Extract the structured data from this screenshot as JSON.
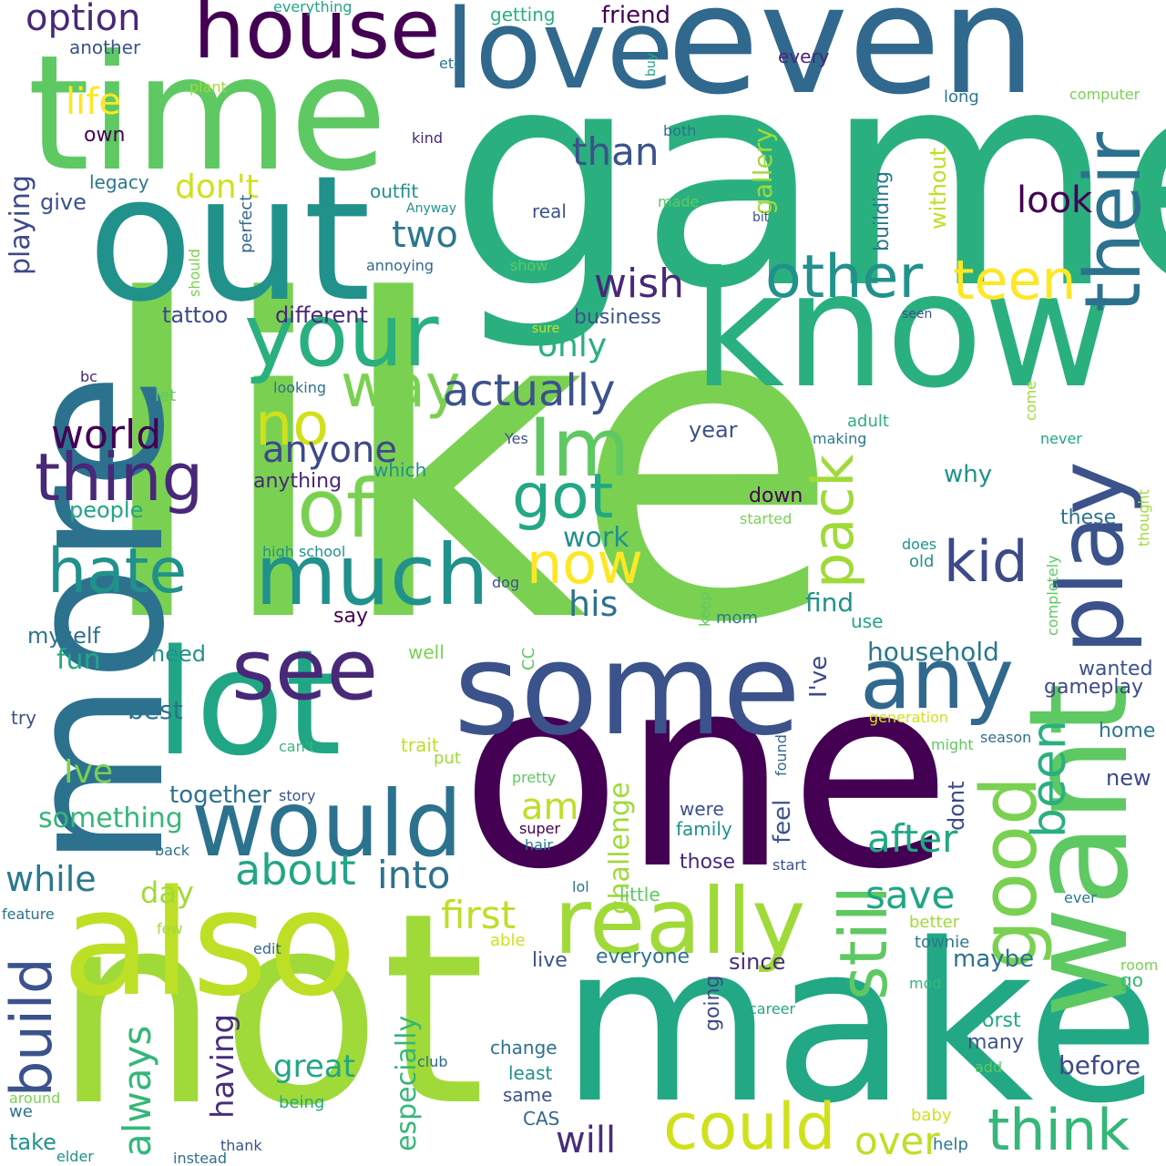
{
  "words": [
    {
      "text": "like",
      "color": "#7ad151"
    },
    {
      "text": "game",
      "color": "#2ab07f"
    },
    {
      "text": "one",
      "color": "#440154"
    },
    {
      "text": "more",
      "color": "#2c728e"
    },
    {
      "text": "not",
      "color": "#a0da39"
    },
    {
      "text": "make",
      "color": "#22a884"
    },
    {
      "text": "time",
      "color": "#5ec962"
    },
    {
      "text": "out",
      "color": "#21918c"
    },
    {
      "text": "even",
      "color": "#31688e"
    },
    {
      "text": "know",
      "color": "#2ab07f"
    },
    {
      "text": "also",
      "color": "#bddf26"
    },
    {
      "text": "some",
      "color": "#3b528b"
    },
    {
      "text": "lot",
      "color": "#21a685"
    },
    {
      "text": "want",
      "color": "#5ec962"
    },
    {
      "text": "love",
      "color": "#31688e"
    },
    {
      "text": "house",
      "color": "#440154"
    },
    {
      "text": "really",
      "color": "#a0da39"
    },
    {
      "text": "would",
      "color": "#2c728e"
    },
    {
      "text": "your",
      "color": "#2ab07f"
    },
    {
      "text": "much",
      "color": "#21918c"
    },
    {
      "text": "see",
      "color": "#482878"
    },
    {
      "text": "play",
      "color": "#3b528b"
    },
    {
      "text": "off",
      "color": "#7ad151"
    },
    {
      "text": "could",
      "color": "#d0e11c"
    },
    {
      "text": "think",
      "color": "#35b779"
    },
    {
      "text": "any",
      "color": "#31688e"
    },
    {
      "text": "good",
      "color": "#7ad151"
    },
    {
      "text": "thing",
      "color": "#482878"
    },
    {
      "text": "their",
      "color": "#2c728e"
    },
    {
      "text": "other",
      "color": "#21918c"
    },
    {
      "text": "Im",
      "color": "#5ec962"
    },
    {
      "text": "hate",
      "color": "#21918c"
    },
    {
      "text": "still",
      "color": "#5ec962"
    },
    {
      "text": "got",
      "color": "#22a884"
    },
    {
      "text": "way",
      "color": "#7ad151"
    },
    {
      "text": "build",
      "color": "#3b528b"
    },
    {
      "text": "pack",
      "color": "#a0da39"
    },
    {
      "text": "teen",
      "color": "#fde725"
    },
    {
      "text": "no",
      "color": "#d0e11c"
    },
    {
      "text": "now",
      "color": "#fde725"
    },
    {
      "text": "kid",
      "color": "#3e4989"
    },
    {
      "text": "actually",
      "color": "#3b528b"
    },
    {
      "text": "about",
      "color": "#21a685"
    },
    {
      "text": "world",
      "color": "#440154"
    },
    {
      "text": "been",
      "color": "#2ab07f"
    },
    {
      "text": "over",
      "color": "#bddf26"
    },
    {
      "text": "into",
      "color": "#2c728e"
    },
    {
      "text": "always",
      "color": "#35b779"
    },
    {
      "text": "anyone",
      "color": "#3e4989"
    },
    {
      "text": "first",
      "color": "#bddf26"
    },
    {
      "text": "save",
      "color": "#21a685"
    },
    {
      "text": "after",
      "color": "#22a884"
    },
    {
      "text": "while",
      "color": "#2a788e"
    },
    {
      "text": "two",
      "color": "#2a788e"
    },
    {
      "text": "wish",
      "color": "#482878"
    },
    {
      "text": "challenge",
      "color": "#a0da39"
    },
    {
      "text": "his",
      "color": "#2c728e"
    },
    {
      "text": "than",
      "color": "#3b528b"
    },
    {
      "text": "look",
      "color": "#440154"
    },
    {
      "text": "option",
      "color": "#482878"
    },
    {
      "text": "life",
      "color": "#fde725"
    },
    {
      "text": "am",
      "color": "#bddf26"
    },
    {
      "text": "will",
      "color": "#472d7b"
    },
    {
      "text": "great",
      "color": "#21a685"
    },
    {
      "text": "having",
      "color": "#472d7b"
    },
    {
      "text": "especially",
      "color": "#35b779"
    },
    {
      "text": "playing",
      "color": "#3e4989"
    },
    {
      "text": "only",
      "color": "#2ab07f"
    },
    {
      "text": "don't",
      "color": "#d0e11c"
    },
    {
      "text": "Ive",
      "color": "#7ad151"
    },
    {
      "text": "day",
      "color": "#a0da39"
    },
    {
      "text": "work",
      "color": "#21918c"
    },
    {
      "text": "something",
      "color": "#35b779"
    },
    {
      "text": "household",
      "color": "#2a788e"
    },
    {
      "text": "friend",
      "color": "#440154"
    },
    {
      "text": "people",
      "color": "#21a685"
    },
    {
      "text": "tattoo",
      "color": "#3e4989"
    },
    {
      "text": "different",
      "color": "#482878"
    },
    {
      "text": "business",
      "color": "#3b528b"
    },
    {
      "text": "gallery",
      "color": "#a0da39"
    },
    {
      "text": "without",
      "color": "#bddf26"
    },
    {
      "text": "building",
      "color": "#2a788e"
    },
    {
      "text": "find",
      "color": "#21918c"
    },
    {
      "text": "I've",
      "color": "#3e4989"
    },
    {
      "text": "feel",
      "color": "#3b528b"
    },
    {
      "text": "best",
      "color": "#2c728e"
    },
    {
      "text": "fun",
      "color": "#22a884"
    },
    {
      "text": "need",
      "color": "#21918c"
    },
    {
      "text": "myself",
      "color": "#2c728e"
    },
    {
      "text": "together",
      "color": "#2c728e"
    },
    {
      "text": "dont",
      "color": "#3e4989"
    },
    {
      "text": "maybe",
      "color": "#2c728e"
    },
    {
      "text": "before",
      "color": "#3e4989"
    },
    {
      "text": "since",
      "color": "#472d7b"
    },
    {
      "text": "everyone",
      "color": "#2c728e"
    },
    {
      "text": "going",
      "color": "#3e4989"
    },
    {
      "text": "new",
      "color": "#3e4989"
    },
    {
      "text": "home",
      "color": "#2a788e"
    },
    {
      "text": "gameplay",
      "color": "#3e4989"
    },
    {
      "text": "wanted",
      "color": "#3b528b"
    },
    {
      "text": "why",
      "color": "#21918c"
    },
    {
      "text": "these",
      "color": "#2c728e"
    },
    {
      "text": "year",
      "color": "#3b528b"
    },
    {
      "text": "anything",
      "color": "#482878"
    },
    {
      "text": "which",
      "color": "#21918c"
    },
    {
      "text": "say",
      "color": "#440154"
    },
    {
      "text": "down",
      "color": "#440154"
    },
    {
      "text": "mom",
      "color": "#2a788e"
    },
    {
      "text": "use",
      "color": "#21a685"
    },
    {
      "text": "many",
      "color": "#3b528b"
    },
    {
      "text": "worst",
      "color": "#22a884"
    },
    {
      "text": "change",
      "color": "#2c728e"
    },
    {
      "text": "least",
      "color": "#21918c"
    },
    {
      "text": "same",
      "color": "#3b528b"
    },
    {
      "text": "CAS",
      "color": "#31688e"
    },
    {
      "text": "live",
      "color": "#3b528b"
    },
    {
      "text": "those",
      "color": "#482878"
    },
    {
      "text": "were",
      "color": "#3b528b"
    },
    {
      "text": "family",
      "color": "#21918c"
    },
    {
      "text": "better",
      "color": "#a0da39"
    },
    {
      "text": "townie",
      "color": "#2a788e"
    },
    {
      "text": "little",
      "color": "#5ec962"
    },
    {
      "text": "take",
      "color": "#21918c"
    },
    {
      "text": "another",
      "color": "#3b528b"
    },
    {
      "text": "own",
      "color": "#440154"
    },
    {
      "text": "legacy",
      "color": "#2a788e"
    },
    {
      "text": "give",
      "color": "#3b528b"
    },
    {
      "text": "outfit",
      "color": "#21918c"
    },
    {
      "text": "real",
      "color": "#3b528b"
    },
    {
      "text": "annoying",
      "color": "#31688e"
    },
    {
      "text": "every",
      "color": "#482878"
    },
    {
      "text": "long",
      "color": "#2a788e"
    },
    {
      "text": "getting",
      "color": "#2ab07f"
    },
    {
      "text": "try",
      "color": "#3b528b"
    },
    {
      "text": "we",
      "color": "#2c728e"
    },
    {
      "text": "elder",
      "color": "#21918c"
    },
    {
      "text": "thank",
      "color": "#3b528b"
    },
    {
      "text": "instead",
      "color": "#2c728e"
    },
    {
      "text": "being",
      "color": "#22a884"
    },
    {
      "text": "around",
      "color": "#7ad151"
    },
    {
      "text": "edit",
      "color": "#31688e"
    },
    {
      "text": "feature",
      "color": "#2c728e"
    },
    {
      "text": "few",
      "color": "#a0da39"
    },
    {
      "text": "able",
      "color": "#d0e11c"
    },
    {
      "text": "lol",
      "color": "#2c728e"
    },
    {
      "text": "help",
      "color": "#2a788e"
    },
    {
      "text": "baby",
      "color": "#d0e11c"
    },
    {
      "text": "add",
      "color": "#5ec962"
    },
    {
      "text": "career",
      "color": "#21a685"
    },
    {
      "text": "mod",
      "color": "#35b779"
    },
    {
      "text": "go",
      "color": "#35b779"
    },
    {
      "text": "room",
      "color": "#7ad151"
    },
    {
      "text": "ever",
      "color": "#2a788e"
    },
    {
      "text": "super",
      "color": "#440154"
    },
    {
      "text": "hair",
      "color": "#2a788e"
    },
    {
      "text": "pretty",
      "color": "#5ec962"
    },
    {
      "text": "start",
      "color": "#3b528b"
    },
    {
      "text": "found",
      "color": "#31688e"
    },
    {
      "text": "might",
      "color": "#5ec962"
    },
    {
      "text": "season",
      "color": "#2c728e"
    },
    {
      "text": "generation",
      "color": "#d0e11c"
    },
    {
      "text": "CC",
      "color": "#5ec962"
    },
    {
      "text": "well",
      "color": "#7ad151"
    },
    {
      "text": "trait",
      "color": "#bddf26"
    },
    {
      "text": "put",
      "color": "#a0da39"
    },
    {
      "text": "can't",
      "color": "#35b779"
    },
    {
      "text": "story",
      "color": "#3b528b"
    },
    {
      "text": "back",
      "color": "#2c728e"
    },
    {
      "text": "club",
      "color": "#31688e"
    },
    {
      "text": "dog",
      "color": "#3b528b"
    },
    {
      "text": "high school",
      "color": "#21918c"
    },
    {
      "text": "started",
      "color": "#7ad151"
    },
    {
      "text": "making",
      "color": "#2a788e"
    },
    {
      "text": "adult",
      "color": "#2ab07f"
    },
    {
      "text": "Yes",
      "color": "#3b528b"
    },
    {
      "text": "keep",
      "color": "#5ec962"
    },
    {
      "text": "completely",
      "color": "#5ec962"
    },
    {
      "text": "does",
      "color": "#21918c"
    },
    {
      "text": "old",
      "color": "#21918c"
    },
    {
      "text": "thought",
      "color": "#a0da39"
    },
    {
      "text": "never",
      "color": "#21a685"
    },
    {
      "text": "come",
      "color": "#a0da39"
    },
    {
      "text": "seen",
      "color": "#3b528b"
    },
    {
      "text": "sure",
      "color": "#d0e11c"
    },
    {
      "text": "show",
      "color": "#5ec962"
    },
    {
      "text": "made",
      "color": "#5ec962"
    },
    {
      "text": "bit",
      "color": "#3b528b"
    },
    {
      "text": "both",
      "color": "#2c728e"
    },
    {
      "text": "computer",
      "color": "#7ad151"
    },
    {
      "text": "buy",
      "color": "#21a685"
    },
    {
      "text": "kind",
      "color": "#482878"
    },
    {
      "text": "Anyway",
      "color": "#21918c"
    },
    {
      "text": "perfect",
      "color": "#31688e"
    },
    {
      "text": "should",
      "color": "#7ad151"
    },
    {
      "text": "plant",
      "color": "#a0da39"
    },
    {
      "text": "etc",
      "color": "#2a788e"
    },
    {
      "text": "everything",
      "color": "#21a685"
    },
    {
      "text": "looking",
      "color": "#2c728e"
    },
    {
      "text": "let",
      "color": "#5ec962"
    },
    {
      "text": "bc",
      "color": "#482878"
    }
  ]
}
